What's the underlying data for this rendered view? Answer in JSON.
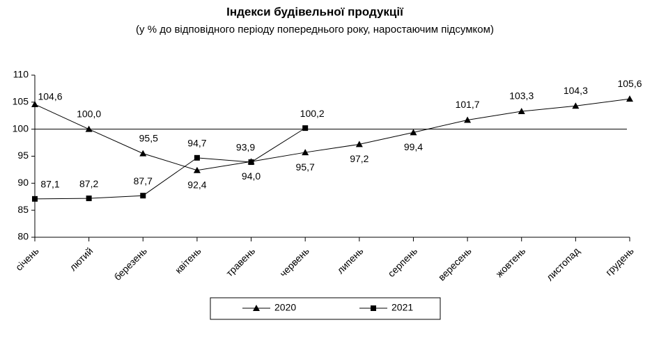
{
  "chart_data": {
    "type": "line",
    "title": "Індекси будівельної продукції",
    "subtitle": "(у % до відповідного періоду попереднього року, наростаючим підсумком)",
    "categories": [
      "січень",
      "лютий",
      "березень",
      "квітень",
      "травень",
      "червень",
      "липень",
      "серпень",
      "вересень",
      "жовтень",
      "листопад",
      "грудень"
    ],
    "series": [
      {
        "name": "2020",
        "color": "#000000",
        "marker": "triangle",
        "values": [
          104.6,
          100.0,
          95.5,
          92.4,
          94.0,
          95.7,
          97.2,
          99.4,
          101.7,
          103.3,
          104.3,
          105.6
        ],
        "value_labels": [
          "104,6",
          "100,0",
          "95,5",
          "92,4",
          "94,0",
          "95,7",
          "97,2",
          "99,4",
          "101,7",
          "103,3",
          "104,3",
          "105,6"
        ]
      },
      {
        "name": "2021",
        "color": "#000000",
        "marker": "square",
        "values": [
          87.1,
          87.2,
          87.7,
          94.7,
          93.9,
          100.2,
          null,
          null,
          null,
          null,
          null,
          null
        ],
        "value_labels": [
          "87,1",
          "87,2",
          "87,7",
          "94,7",
          "93,9",
          "100,2",
          null,
          null,
          null,
          null,
          null,
          null
        ]
      }
    ],
    "ylim": [
      80,
      110
    ],
    "yticks": [
      80,
      85,
      90,
      95,
      100,
      105,
      110
    ],
    "hline": 100,
    "grid": false,
    "legend": "bottom"
  }
}
